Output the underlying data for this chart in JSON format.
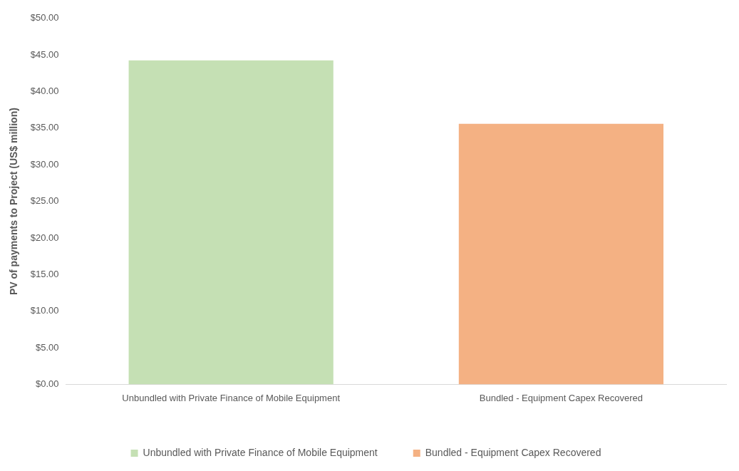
{
  "chart_data": {
    "type": "bar",
    "ylabel": "PV of payments to Project (US$ million)",
    "categories": [
      "Unbundled with Private Finance of Mobile Equipment",
      "Bundled - Equipment Capex Recovered"
    ],
    "series": [
      {
        "name": "Unbundled with Private Finance of Mobile Equipment",
        "color": "#c5e0b4",
        "values": [
          44.25,
          null
        ]
      },
      {
        "name": "Bundled - Equipment Capex Recovered",
        "color": "#f4b183",
        "values": [
          null,
          35.6
        ]
      }
    ],
    "ylim": [
      0,
      50
    ],
    "yticks": [
      {
        "value": 0,
        "label": "$0.00"
      },
      {
        "value": 5,
        "label": "$5.00"
      },
      {
        "value": 10,
        "label": "$10.00"
      },
      {
        "value": 15,
        "label": "$15.00"
      },
      {
        "value": 20,
        "label": "$20.00"
      },
      {
        "value": 25,
        "label": "$25.00"
      },
      {
        "value": 30,
        "label": "$30.00"
      },
      {
        "value": 35,
        "label": "$35.00"
      },
      {
        "value": 40,
        "label": "$40.00"
      },
      {
        "value": 45,
        "label": "$45.00"
      },
      {
        "value": 50,
        "label": "$50.00"
      }
    ],
    "grid": false,
    "legend": "bottom"
  }
}
